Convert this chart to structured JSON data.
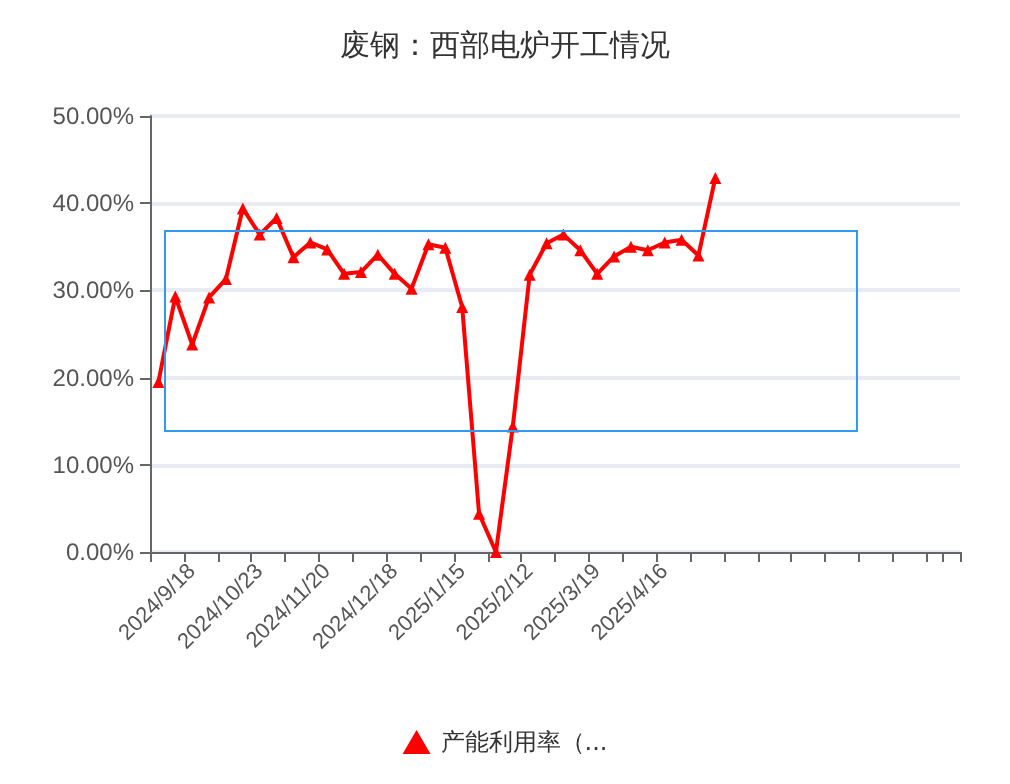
{
  "chart_data": {
    "type": "line",
    "title": "废钢：西部电炉开工情况",
    "categories": [
      null,
      null,
      "2024/9/18",
      null,
      null,
      null,
      "2024/10/23",
      null,
      null,
      null,
      "2024/11/20",
      null,
      null,
      null,
      "2024/12/18",
      null,
      null,
      null,
      "2025/1/15",
      null,
      null,
      null,
      "2025/2/12",
      null,
      null,
      null,
      "2025/3/19",
      null,
      null,
      null,
      "2025/4/16",
      null,
      null,
      null,
      null,
      null,
      null,
      null,
      null,
      null,
      null,
      null,
      null,
      null,
      null,
      null,
      null,
      null
    ],
    "series": [
      {
        "name": "产能利用率（...",
        "color": "#ff0000",
        "values": [
          19.5,
          29.3,
          23.8,
          29.2,
          31.3,
          39.4,
          36.4,
          38.3,
          33.8,
          35.5,
          34.7,
          31.9,
          32.1,
          34.1,
          31.9,
          30.2,
          35.3,
          34.9,
          28.1,
          4.4,
          0,
          14.4,
          31.8,
          35.4,
          36.4,
          34.6,
          31.9,
          33.9,
          35.0,
          34.6,
          35.5,
          35.8,
          34.0,
          42.9,
          null,
          null,
          null,
          null,
          null,
          null,
          null,
          null,
          null,
          null,
          null,
          null,
          null,
          null
        ]
      }
    ],
    "ylim": [
      0,
      50
    ],
    "yticks": [
      {
        "value": 0,
        "label": "0.00%"
      },
      {
        "value": 10,
        "label": "10.00%"
      },
      {
        "value": 20,
        "label": "20.00%"
      },
      {
        "value": 30,
        "label": "30.00%"
      },
      {
        "value": 40,
        "label": "40.00%"
      },
      {
        "value": 50,
        "label": "50.00%"
      }
    ],
    "grid": "y",
    "legend": "bottom",
    "marker": "triangle",
    "line_style": "solid"
  }
}
